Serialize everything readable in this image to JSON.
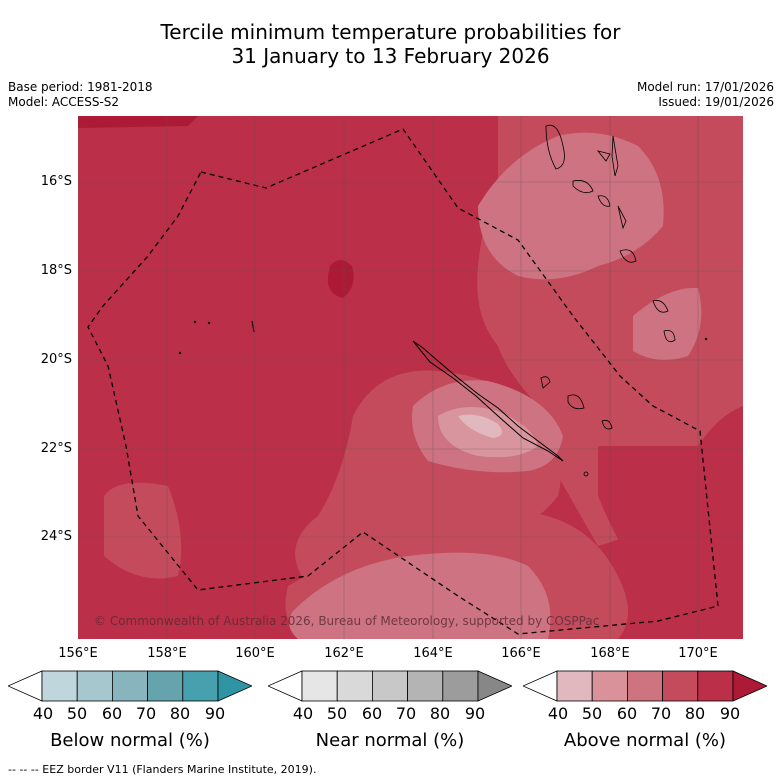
{
  "title": {
    "line1": "Tercile minimum temperature probabilities for",
    "line2": "31 January to 13 February 2026"
  },
  "meta": {
    "base_period": "Base period: 1981-2018",
    "model": "Model: ACCESS-S2",
    "model_run": "Model run: 17/01/2026",
    "issued": "Issued: 19/01/2026"
  },
  "map": {
    "lon_range": [
      155.9,
      171.0
    ],
    "lat_range": [
      -26.0,
      -14.8
    ],
    "lat_ticks": [
      "16°S",
      "18°S",
      "20°S",
      "22°S",
      "24°S"
    ],
    "lon_ticks": [
      "156°E",
      "158°E",
      "160°E",
      "162°E",
      "164°E",
      "166°E",
      "168°E",
      "170°E"
    ],
    "copyright": "© Commonwealth of Australia 2026, Bureau of Meteorology, supported by COSPPac",
    "field": "Above normal (%)",
    "dominant_category": "above-normal",
    "dominant_range": "80-90",
    "colors": {
      "above_70": "#c34b5c",
      "above_80": "#bb2f48",
      "above_90": "#ad1a36",
      "above_60": "#cd7381",
      "above_50": "#d9959e",
      "above_40": "#e9bec3",
      "land_outline": "#000000",
      "eez_line": "#000000"
    }
  },
  "colorbars": [
    {
      "label": "Below normal (%)",
      "ticks": [
        "40",
        "50",
        "60",
        "70",
        "80",
        "90"
      ],
      "colors": [
        "#ffffff",
        "#bfd6dc",
        "#a5c7cd",
        "#87b4bd",
        "#65a3ad",
        "#47a0ad",
        "#2f95a5"
      ]
    },
    {
      "label": "Near normal (%)",
      "ticks": [
        "40",
        "50",
        "60",
        "70",
        "80",
        "90"
      ],
      "colors": [
        "#ffffff",
        "#e6e6e6",
        "#d9d9d9",
        "#c8c8c8",
        "#b4b4b4",
        "#9c9c9c",
        "#878787"
      ]
    },
    {
      "label": "Above normal (%)",
      "ticks": [
        "40",
        "50",
        "60",
        "70",
        "80",
        "90"
      ],
      "colors": [
        "#ffffff",
        "#e2b8bf",
        "#d99299",
        "#ce7480",
        "#c34b5c",
        "#bb2f48",
        "#ad1a36"
      ]
    }
  ],
  "footnote": "-- -- -- EEZ border V11 (Flanders Marine Institute, 2019)."
}
